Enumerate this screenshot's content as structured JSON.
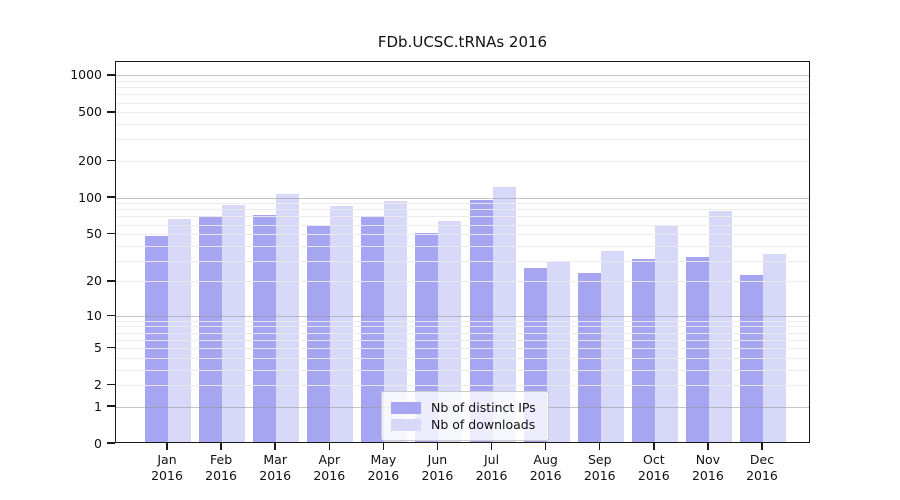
{
  "title": "FDb.UCSC.tRNAs 2016",
  "chart_data": {
    "type": "bar",
    "categories": [
      "Jan",
      "Feb",
      "Mar",
      "Apr",
      "May",
      "Jun",
      "Jul",
      "Aug",
      "Sep",
      "Oct",
      "Nov",
      "Dec"
    ],
    "year": "2016",
    "series": [
      {
        "name": "Nb of distinct IPs",
        "color": "#a5a5f2",
        "values": [
          47,
          68,
          70,
          58,
          68,
          50,
          93,
          25,
          23,
          30,
          31,
          22
        ]
      },
      {
        "name": "Nb of downloads",
        "color": "#d8d8f8",
        "values": [
          65,
          85,
          104,
          83,
          92,
          62,
          120,
          29,
          35,
          58,
          76,
          33
        ]
      }
    ],
    "title": "FDb.UCSC.tRNAs 2016",
    "xlabel": "",
    "ylabel": "",
    "yticks": [
      0,
      1,
      2,
      5,
      10,
      20,
      50,
      100,
      200,
      500,
      1000
    ],
    "ylim": [
      0,
      1300
    ],
    "scale": "log1p",
    "grid": "on",
    "gridline_minor_color": "#ececec",
    "gridline_major_color": "#b5b5b5",
    "legend_position": "lower-center",
    "legend_items": [
      "Nb of distinct IPs",
      "Nb of downloads"
    ]
  }
}
